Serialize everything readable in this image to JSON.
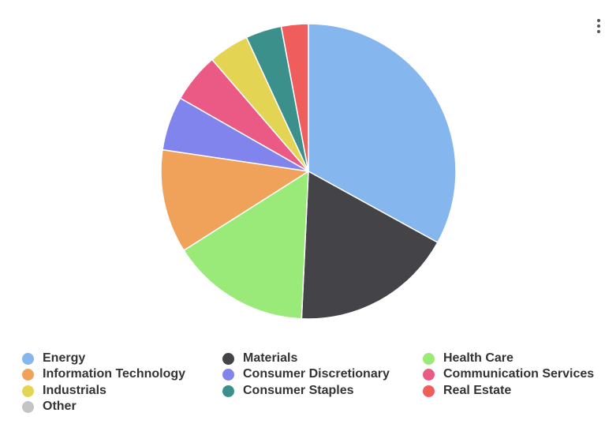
{
  "chart_data": {
    "type": "pie",
    "title": "",
    "legend": "bottom",
    "slices": [
      {
        "name": "Energy",
        "value": 33.5,
        "color": "#86b6ee"
      },
      {
        "name": "Materials",
        "value": 18.0,
        "color": "#434348"
      },
      {
        "name": "Health Care",
        "value": 15.5,
        "color": "#9aea7a"
      },
      {
        "name": "Information Technology",
        "value": 11.5,
        "color": "#f1a25a"
      },
      {
        "name": "Consumer Discretionary",
        "value": 6.0,
        "color": "#8184ec"
      },
      {
        "name": "Communication Services",
        "value": 5.5,
        "color": "#eb5a84"
      },
      {
        "name": "Industrials",
        "value": 4.5,
        "color": "#e3d453"
      },
      {
        "name": "Consumer Staples",
        "value": 4.0,
        "color": "#3b908c"
      },
      {
        "name": "Real Estate",
        "value": 3.0,
        "color": "#ef5d5d"
      },
      {
        "name": "Other",
        "value": 0,
        "color": "#c4c4c4"
      }
    ]
  },
  "menu": {
    "icon": "more-vertical-icon"
  }
}
